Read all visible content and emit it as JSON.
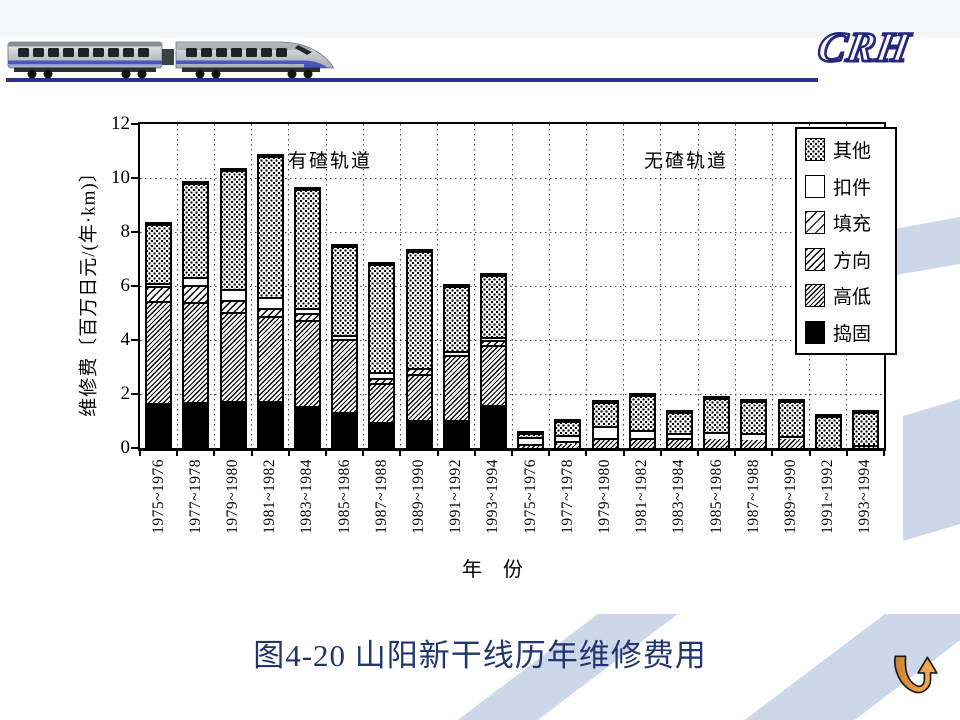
{
  "slide": {
    "logo_text": "CRH",
    "caption": "图4-20 山阳新干线历年维修费用"
  },
  "chart_data": {
    "type": "bar",
    "stacked": true,
    "title": "",
    "ylabel": "维修费〔百万日元/(年·km)〕",
    "xlabel": "年 份",
    "ylim": [
      0,
      12
    ],
    "yticks": [
      0,
      2,
      4,
      6,
      8,
      10,
      12
    ],
    "grid": true,
    "legend_position": "top-right",
    "group_labels": [
      "有碴轨道",
      "无碴轨道"
    ],
    "categories": [
      "1975~1976",
      "1977~1978",
      "1979~1980",
      "1981~1982",
      "1983~1984",
      "1985~1986",
      "1987~1988",
      "1989~1990",
      "1991~1992",
      "1993~1994",
      "1975~1976",
      "1977~1978",
      "1979~1980",
      "1981~1982",
      "1983~1984",
      "1985~1986",
      "1987~1988",
      "1989~1990",
      "1991~1992",
      "1993~1994"
    ],
    "series": [
      {
        "name": "捣固",
        "pattern": "solid",
        "values": [
          1.65,
          1.7,
          1.75,
          1.75,
          1.55,
          1.35,
          0.95,
          1.05,
          1.05,
          1.6,
          0,
          0,
          0,
          0,
          0,
          0,
          0,
          0,
          0,
          0
        ]
      },
      {
        "name": "高低",
        "pattern": "hatch-dense",
        "values": [
          3.8,
          3.7,
          3.3,
          3.15,
          3.2,
          2.7,
          1.45,
          1.7,
          2.4,
          2.2,
          0.1,
          0.15,
          0.3,
          0.3,
          0.3,
          0.35,
          0.3,
          0.35,
          0.05,
          0.05
        ]
      },
      {
        "name": "方向",
        "pattern": "hatch-medium",
        "values": [
          0.55,
          0.65,
          0.45,
          0.3,
          0.25,
          0,
          0.2,
          0.2,
          0,
          0.2,
          0,
          0,
          0,
          0,
          0,
          0,
          0,
          0,
          0,
          0
        ]
      },
      {
        "name": "填充",
        "pattern": "hatch-sparse",
        "values": [
          0,
          0,
          0,
          0,
          0,
          0,
          0,
          0,
          0,
          0,
          0.05,
          0.1,
          0.05,
          0.05,
          0.05,
          0,
          0,
          0,
          0,
          0.05
        ]
      },
      {
        "name": "扣件",
        "pattern": "white",
        "values": [
          0.1,
          0.3,
          0.4,
          0.4,
          0.2,
          0.15,
          0.2,
          0,
          0.15,
          0.1,
          0.25,
          0.25,
          0.45,
          0.3,
          0.2,
          0.25,
          0.25,
          0.1,
          0,
          0
        ]
      },
      {
        "name": "其他",
        "pattern": "dots",
        "values": [
          2.2,
          3.45,
          4.4,
          5.2,
          4.4,
          3.3,
          4.0,
          4.35,
          2.4,
          2.3,
          0.15,
          0.5,
          0.9,
          1.3,
          0.8,
          1.25,
          1.2,
          1.3,
          1.15,
          1.25
        ]
      }
    ],
    "legend": [
      {
        "label": "其他",
        "pattern": "dots"
      },
      {
        "label": "扣件",
        "pattern": "white"
      },
      {
        "label": "填充",
        "pattern": "hatch-sparse"
      },
      {
        "label": "方向",
        "pattern": "hatch-medium"
      },
      {
        "label": "高低",
        "pattern": "hatch-dense"
      },
      {
        "label": "捣固",
        "pattern": "solid"
      }
    ],
    "colors": {
      "ink": "#000000",
      "accent_line": "#2d2d8c",
      "caption_text": "#22356e",
      "swoosh": "#ccd7ea",
      "arrow": "#e0933c"
    }
  }
}
